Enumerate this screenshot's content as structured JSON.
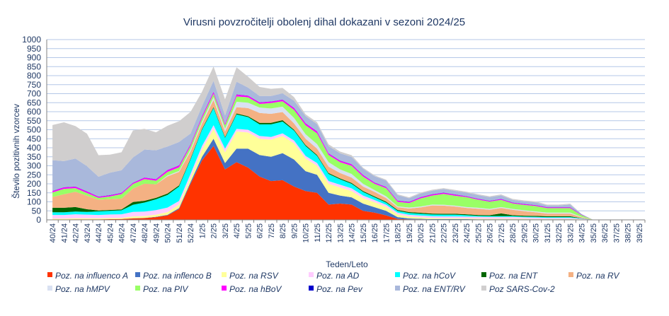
{
  "chart_data": {
    "type": "area",
    "stacked": true,
    "title": "Virusni povzročitelji  obolenj dihal dokazani v sezoni 2024/25",
    "xlabel": "Teden/Leto",
    "ylabel": "Število pozitivnih vzorcev",
    "ylim": [
      0,
      1000
    ],
    "yticks": [
      0,
      50,
      100,
      150,
      200,
      250,
      300,
      350,
      400,
      450,
      500,
      550,
      600,
      650,
      700,
      750,
      800,
      850,
      900,
      950,
      1000
    ],
    "grid": true,
    "legend_position": "bottom",
    "categories": [
      "40/24",
      "41/24",
      "42/24",
      "43/24",
      "44/24",
      "45/24",
      "46/24",
      "47/24",
      "48/24",
      "49/24",
      "50/24",
      "51/24",
      "52/24",
      "1/25",
      "2/25",
      "3/25",
      "4/25",
      "5/25",
      "6/25",
      "7/25",
      "8/25",
      "9/25",
      "10/25",
      "11/25",
      "12/25",
      "13/25",
      "14/25",
      "15/25",
      "16/25",
      "17/25",
      "18/25",
      "19/25",
      "20/25",
      "21/25",
      "22/25",
      "23/25",
      "24/25",
      "25/25",
      "26/25",
      "27/25",
      "28/25",
      "29/25",
      "30/25",
      "31/25",
      "32/25",
      "33/25",
      "34/25",
      "35/25",
      "36/25",
      "37/25",
      "38/25",
      "39/25"
    ],
    "series": [
      {
        "name": "Poz. na influenco A",
        "color": "#ff3300",
        "values": [
          2,
          2,
          3,
          3,
          3,
          4,
          5,
          8,
          10,
          15,
          25,
          60,
          200,
          330,
          410,
          280,
          320,
          290,
          240,
          215,
          220,
          185,
          160,
          150,
          85,
          90,
          85,
          50,
          40,
          25,
          5,
          3,
          3,
          2,
          2,
          2,
          2,
          2,
          2,
          2,
          2,
          2,
          2,
          2,
          2,
          2,
          2,
          0,
          0,
          0,
          0,
          0
        ]
      },
      {
        "name": "Poz. na inflenco B",
        "color": "#4472c4",
        "values": [
          0,
          0,
          0,
          0,
          0,
          0,
          0,
          1,
          1,
          2,
          3,
          5,
          10,
          20,
          40,
          35,
          75,
          105,
          120,
          135,
          150,
          150,
          110,
          100,
          65,
          45,
          40,
          40,
          30,
          25,
          10,
          5,
          3,
          2,
          2,
          2,
          2,
          1,
          1,
          1,
          1,
          1,
          1,
          1,
          1,
          1,
          0,
          0,
          0,
          0,
          0,
          0
        ]
      },
      {
        "name": "Poz. na RSV",
        "color": "#ffff99",
        "values": [
          5,
          5,
          6,
          6,
          6,
          6,
          6,
          10,
          10,
          12,
          15,
          20,
          25,
          40,
          55,
          60,
          95,
          90,
          90,
          95,
          95,
          90,
          70,
          50,
          50,
          45,
          35,
          30,
          28,
          22,
          15,
          10,
          8,
          6,
          5,
          5,
          4,
          4,
          3,
          3,
          3,
          3,
          2,
          2,
          2,
          2,
          1,
          0,
          0,
          0,
          0,
          0
        ]
      },
      {
        "name": "Poz. na AD",
        "color": "#ffccff",
        "values": [
          20,
          20,
          22,
          20,
          18,
          20,
          20,
          25,
          25,
          25,
          25,
          20,
          20,
          20,
          20,
          20,
          15,
          15,
          15,
          15,
          15,
          15,
          15,
          15,
          15,
          15,
          15,
          15,
          12,
          12,
          10,
          10,
          10,
          10,
          10,
          10,
          10,
          10,
          10,
          10,
          10,
          8,
          8,
          6,
          6,
          6,
          3,
          0,
          0,
          0,
          0,
          0
        ]
      },
      {
        "name": "Poz. na hCoV",
        "color": "#00ffff",
        "values": [
          15,
          15,
          15,
          15,
          20,
          20,
          22,
          40,
          50,
          60,
          70,
          80,
          80,
          90,
          95,
          60,
          80,
          70,
          65,
          70,
          65,
          55,
          55,
          40,
          40,
          30,
          25,
          20,
          15,
          12,
          10,
          10,
          10,
          10,
          10,
          10,
          8,
          5,
          5,
          5,
          5,
          4,
          4,
          4,
          4,
          4,
          2,
          0,
          0,
          0,
          0,
          0
        ]
      },
      {
        "name": "Poz. na ENT",
        "color": "#006600",
        "values": [
          25,
          25,
          25,
          15,
          5,
          5,
          5,
          15,
          10,
          8,
          8,
          6,
          5,
          5,
          5,
          5,
          5,
          5,
          8,
          8,
          8,
          5,
          5,
          5,
          5,
          5,
          5,
          5,
          5,
          5,
          5,
          5,
          5,
          5,
          5,
          5,
          5,
          5,
          5,
          15,
          5,
          5,
          5,
          5,
          5,
          5,
          1,
          0,
          0,
          0,
          0,
          0
        ]
      },
      {
        "name": "Poz. na RV",
        "color": "#f4b183",
        "values": [
          60,
          75,
          85,
          75,
          60,
          60,
          60,
          75,
          95,
          75,
          95,
          75,
          40,
          30,
          40,
          30,
          35,
          45,
          55,
          50,
          45,
          35,
          35,
          35,
          35,
          30,
          30,
          25,
          25,
          20,
          15,
          20,
          30,
          45,
          45,
          40,
          35,
          35,
          30,
          30,
          30,
          25,
          20,
          15,
          15,
          15,
          5,
          0,
          0,
          0,
          0,
          0
        ]
      },
      {
        "name": "Poz. na hMPV",
        "color": "#d9e1f2",
        "values": [
          0,
          0,
          0,
          0,
          0,
          0,
          0,
          0,
          0,
          0,
          5,
          5,
          10,
          10,
          15,
          15,
          30,
          30,
          30,
          30,
          30,
          30,
          25,
          25,
          25,
          20,
          20,
          15,
          10,
          10,
          5,
          5,
          5,
          5,
          5,
          5,
          5,
          5,
          5,
          5,
          5,
          5,
          5,
          5,
          5,
          5,
          2,
          0,
          0,
          0,
          0,
          0
        ]
      },
      {
        "name": "Poz. na PIV",
        "color": "#99ff66",
        "values": [
          25,
          30,
          20,
          15,
          10,
          15,
          25,
          25,
          25,
          20,
          20,
          20,
          20,
          20,
          20,
          20,
          30,
          30,
          20,
          30,
          30,
          45,
          50,
          60,
          40,
          40,
          45,
          40,
          35,
          45,
          25,
          25,
          45,
          50,
          60,
          55,
          55,
          45,
          40,
          40,
          30,
          30,
          30,
          25,
          25,
          25,
          10,
          0,
          0,
          0,
          0,
          0
        ]
      },
      {
        "name": "Poz. na hBoV",
        "color": "#ff00ff",
        "values": [
          8,
          8,
          8,
          8,
          6,
          6,
          6,
          6,
          8,
          8,
          10,
          10,
          8,
          10,
          10,
          8,
          10,
          8,
          8,
          8,
          8,
          10,
          10,
          10,
          8,
          8,
          8,
          8,
          6,
          6,
          6,
          6,
          6,
          6,
          6,
          6,
          4,
          4,
          4,
          4,
          4,
          4,
          4,
          4,
          4,
          4,
          2,
          0,
          0,
          0,
          0,
          0
        ]
      },
      {
        "name": "Poz. na Pev",
        "color": "#0000cc",
        "values": [
          1,
          1,
          1,
          1,
          1,
          1,
          1,
          1,
          1,
          1,
          1,
          1,
          1,
          1,
          1,
          1,
          1,
          1,
          1,
          1,
          1,
          1,
          1,
          1,
          1,
          1,
          1,
          1,
          1,
          1,
          1,
          1,
          1,
          1,
          1,
          1,
          1,
          1,
          1,
          1,
          1,
          1,
          1,
          1,
          1,
          1,
          1,
          0,
          0,
          0,
          0,
          0
        ]
      },
      {
        "name": "Poz. na ENT/RV",
        "color": "#a9b8db",
        "values": [
          170,
          145,
          155,
          140,
          110,
          125,
          125,
          140,
          155,
          160,
          130,
          130,
          60,
          55,
          60,
          45,
          70,
          45,
          35,
          30,
          35,
          40,
          40,
          40,
          40,
          40,
          40,
          35,
          35,
          35,
          30,
          20,
          20,
          20,
          20,
          20,
          20,
          20,
          20,
          20,
          15,
          15,
          15,
          10,
          10,
          15,
          3,
          0,
          0,
          0,
          0,
          0
        ]
      },
      {
        "name": "Poz  SARS-Cov-2",
        "color": "#d0cece",
        "values": [
          195,
          215,
          180,
          180,
          120,
          100,
          100,
          150,
          115,
          100,
          115,
          115,
          120,
          80,
          80,
          90,
          80,
          60,
          50,
          40,
          30,
          20,
          10,
          10,
          10,
          10,
          10,
          5,
          5,
          5,
          5,
          5,
          5,
          5,
          5,
          5,
          5,
          5,
          5,
          5,
          5,
          5,
          5,
          5,
          5,
          5,
          0,
          0,
          0,
          0,
          0,
          0
        ]
      }
    ]
  }
}
